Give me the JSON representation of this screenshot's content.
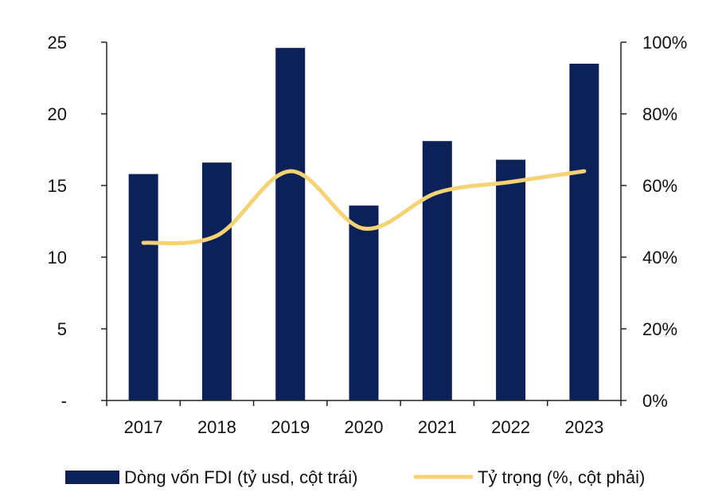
{
  "chart_data": {
    "type": "bar",
    "categories": [
      "2017",
      "2018",
      "2019",
      "2020",
      "2021",
      "2022",
      "2023"
    ],
    "series": [
      {
        "name": "Dòng vốn FDI (tỷ usd, cột trái)",
        "type": "bar",
        "axis": "left",
        "color": "#0c2158",
        "values": [
          15.8,
          16.6,
          24.6,
          13.6,
          18.1,
          16.8,
          23.5
        ]
      },
      {
        "name": "Tỷ trọng (%, cột phải)",
        "type": "line",
        "axis": "right",
        "color": "#f5d375",
        "values": [
          44,
          46,
          64,
          48,
          58,
          61,
          64
        ]
      }
    ],
    "y_left": {
      "ylim": [
        0,
        25
      ],
      "ticks": [
        0,
        5,
        10,
        15,
        20,
        25
      ],
      "tick_labels": [
        "-",
        "5",
        "10",
        "15",
        "20",
        "25"
      ]
    },
    "y_right": {
      "ylim": [
        0,
        100
      ],
      "ticks": [
        0,
        20,
        40,
        60,
        80,
        100
      ],
      "tick_labels": [
        "0%",
        "20%",
        "40%",
        "60%",
        "80%",
        "100%"
      ]
    },
    "grid": false,
    "legend_position": "bottom"
  }
}
